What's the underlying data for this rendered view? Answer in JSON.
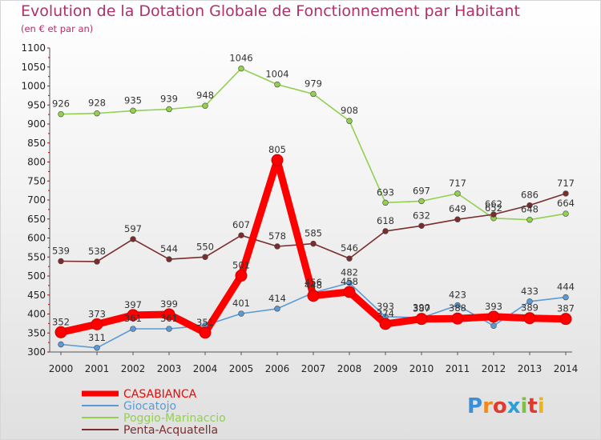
{
  "title": "Evolution de la Dotation Globale de Fonctionnement par Habitant",
  "subtitle": "(en € et par an)",
  "logo": {
    "letters": [
      "P",
      "r",
      "o",
      "x",
      "i",
      "t",
      "i"
    ],
    "colors": [
      "#3a8fd6",
      "#f08a1c",
      "#e03a2f",
      "#2e9fd6",
      "#7cc242",
      "#e03a2f",
      "#f0b21c"
    ]
  },
  "chart_data": {
    "type": "line",
    "x": [
      "2000",
      "2001",
      "2002",
      "2003",
      "2004",
      "2005",
      "2006",
      "2007",
      "2008",
      "2009",
      "2010",
      "2011",
      "2012",
      "2013",
      "2014"
    ],
    "ylim": [
      300,
      1100
    ],
    "yticks": [
      "300",
      "350",
      "400",
      "450",
      "500",
      "550",
      "600",
      "650",
      "700",
      "750",
      "800",
      "850",
      "900",
      "950",
      "1000",
      "1050",
      "1100"
    ],
    "grid": false,
    "legend_position": "bottom-left",
    "series": [
      {
        "name": "CASABIANCA",
        "color": "#ff0000",
        "values": [
          352,
          373,
          397,
          399,
          351,
          501,
          805,
          448,
          458,
          374,
          387,
          388,
          393,
          389,
          387
        ],
        "labels": [
          "352",
          "373",
          "397",
          "399",
          "351",
          "501",
          "805",
          "448",
          "458",
          "374",
          "387",
          "388",
          "393",
          "389",
          "387"
        ]
      },
      {
        "name": "Giocatojo",
        "color": "#5b9bd5",
        "values": [
          320,
          311,
          361,
          361,
          370,
          401,
          414,
          456,
          482,
          393,
          390,
          423,
          369,
          433,
          444
        ],
        "labels": [
          "",
          "311",
          "361",
          "361",
          "",
          "401",
          "414",
          "456",
          "482",
          "393",
          "390",
          "423",
          "",
          "433",
          "444"
        ]
      },
      {
        "name": "Poggio-Marinaccio",
        "color": "#92d050",
        "values": [
          926,
          928,
          935,
          939,
          948,
          1046,
          1004,
          979,
          908,
          693,
          697,
          717,
          652,
          648,
          664
        ],
        "labels": [
          "926",
          "928",
          "935",
          "939",
          "948",
          "1046",
          "1004",
          "979",
          "908",
          "693",
          "697",
          "717",
          "652",
          "648",
          "664"
        ]
      },
      {
        "name": "Penta-Acquatella",
        "color": "#7b2c2c",
        "values": [
          539,
          538,
          597,
          544,
          550,
          607,
          578,
          585,
          546,
          618,
          632,
          649,
          662,
          686,
          717
        ],
        "labels": [
          "539",
          "538",
          "597",
          "544",
          "550",
          "607",
          "578",
          "585",
          "546",
          "618",
          "632",
          "649",
          "662",
          "686",
          "717"
        ]
      }
    ]
  }
}
